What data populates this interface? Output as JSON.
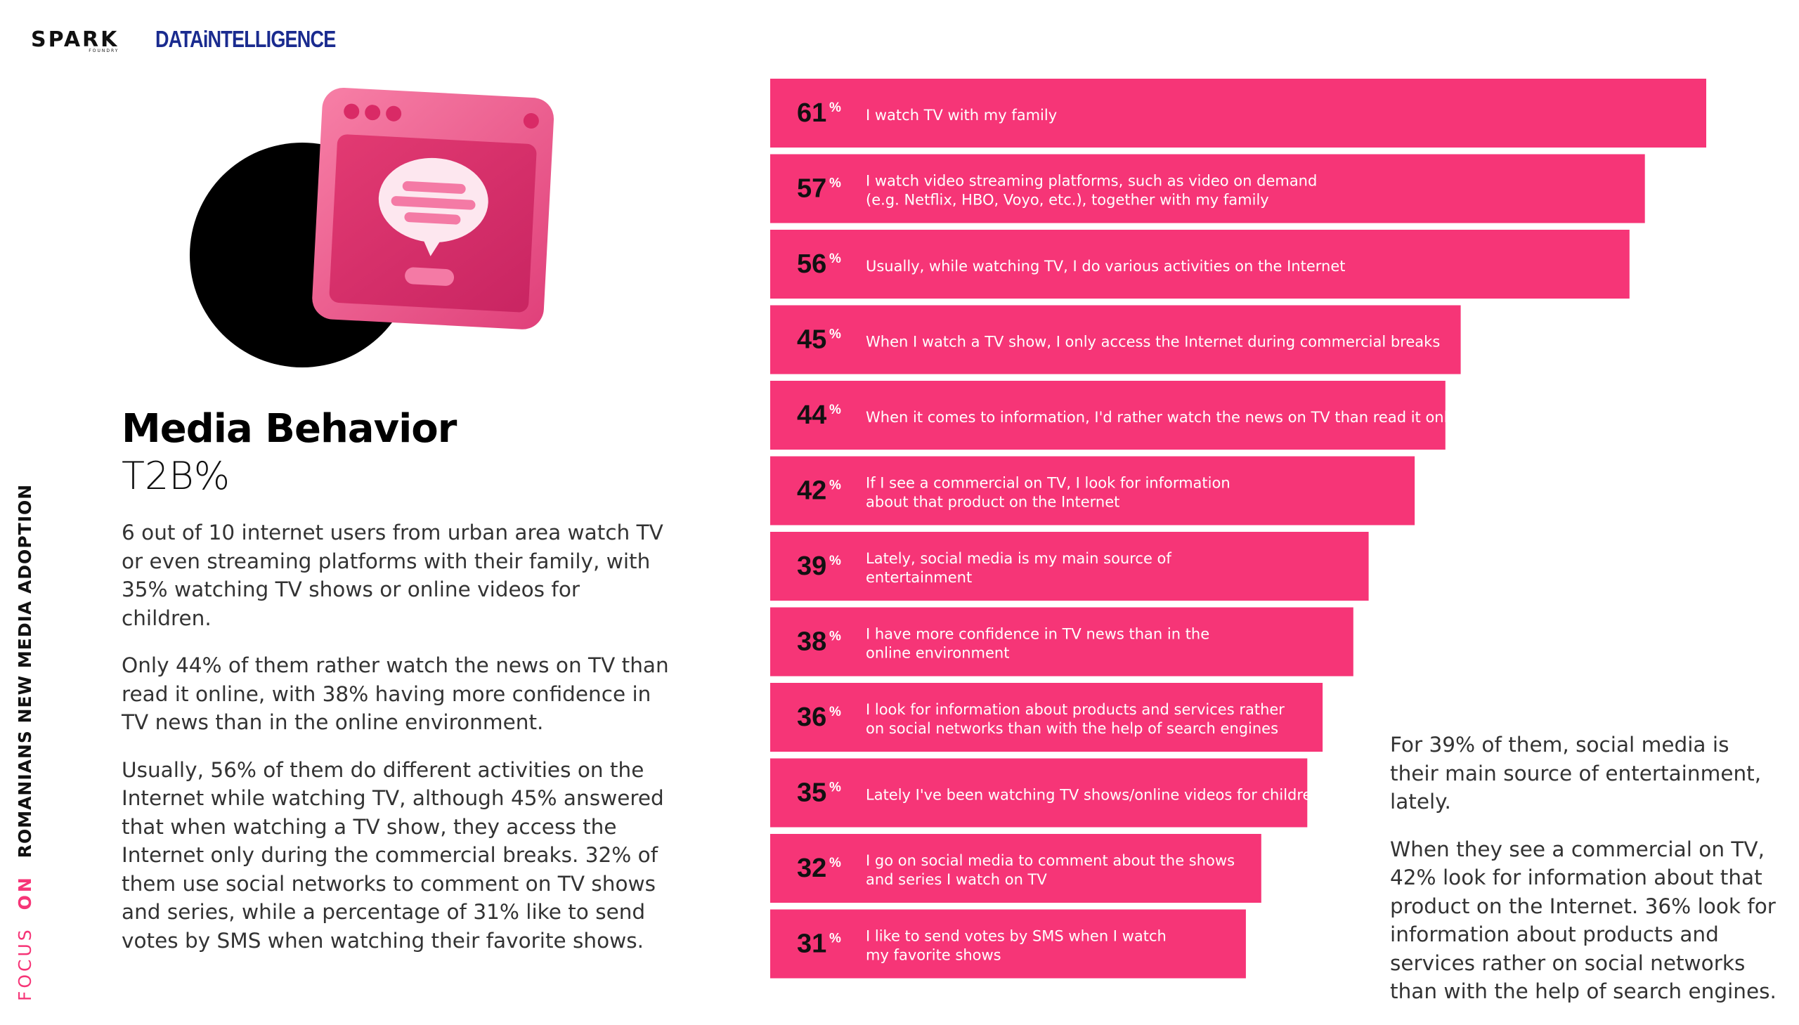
{
  "logos": {
    "spark": "SPARK",
    "spark_sub": "FOUNDRY",
    "data_intelligence": "DATAiNTELLIGENCE"
  },
  "title": "Media Behavior",
  "subtitle": "T2B%",
  "body_left": [
    "6 out of 10 internet users from urban area watch TV or even streaming platforms with their family, with 35% watching TV shows or online videos for children.",
    "Only 44% of them rather watch the news on TV than read it online, with 38% having more confidence in TV news than in the online environment.",
    "Usually, 56% of them do different activities on the Internet while watching TV, although 45% answered that when watching a TV show, they access the Internet only during the commercial breaks. 32% of them use social networks to comment on TV shows and series, while a percentage of 31% like to send votes by SMS when watching their favorite shows."
  ],
  "body_right": [
    "For 39% of them, social media is their main source of entertainment, lately.",
    "When they see a commercial on TV, 42% look for information about that product on the Internet. 36% look for information about products and services rather on social networks than with the help of search engines."
  ],
  "vertical_label": {
    "focus": "FOCUS",
    "on": "ON",
    "rest": "ROMANIANS NEW MEDIA ADOPTION"
  },
  "colors": {
    "bar": "#f63577",
    "accent": "#f63577",
    "text": "#333333",
    "title": "#000000"
  },
  "chart_data": {
    "type": "bar",
    "orientation": "horizontal",
    "unit": "%",
    "xlim": [
      0,
      100
    ],
    "categories": [
      [
        "I watch TV with my family"
      ],
      [
        "I watch video streaming platforms, such as video on demand",
        "(e.g. Netflix, HBO, Voyo, etc.), together with my family"
      ],
      [
        "Usually, while watching TV, I do various activities on the Internet"
      ],
      [
        "When I watch a TV show, I only access the Internet during commercial breaks"
      ],
      [
        "When it comes to information, I'd rather watch the news on TV than read it online"
      ],
      [
        "If I see a commercial on TV, I look for information",
        "about that product on the Internet"
      ],
      [
        "Lately, social media is my main source of",
        "entertainment"
      ],
      [
        "I have more confidence in TV news than in the",
        "online environment"
      ],
      [
        "I look for information about products and services rather",
        "on social networks than with the help of search engines"
      ],
      [
        "Lately I've been watching TV shows/online videos for children"
      ],
      [
        "I go on social media to comment about the shows",
        "and series I watch on TV"
      ],
      [
        "I like to send votes by SMS when I watch",
        "my favorite shows"
      ]
    ],
    "values": [
      61,
      57,
      56,
      45,
      44,
      42,
      39,
      38,
      36,
      35,
      32,
      31
    ]
  }
}
